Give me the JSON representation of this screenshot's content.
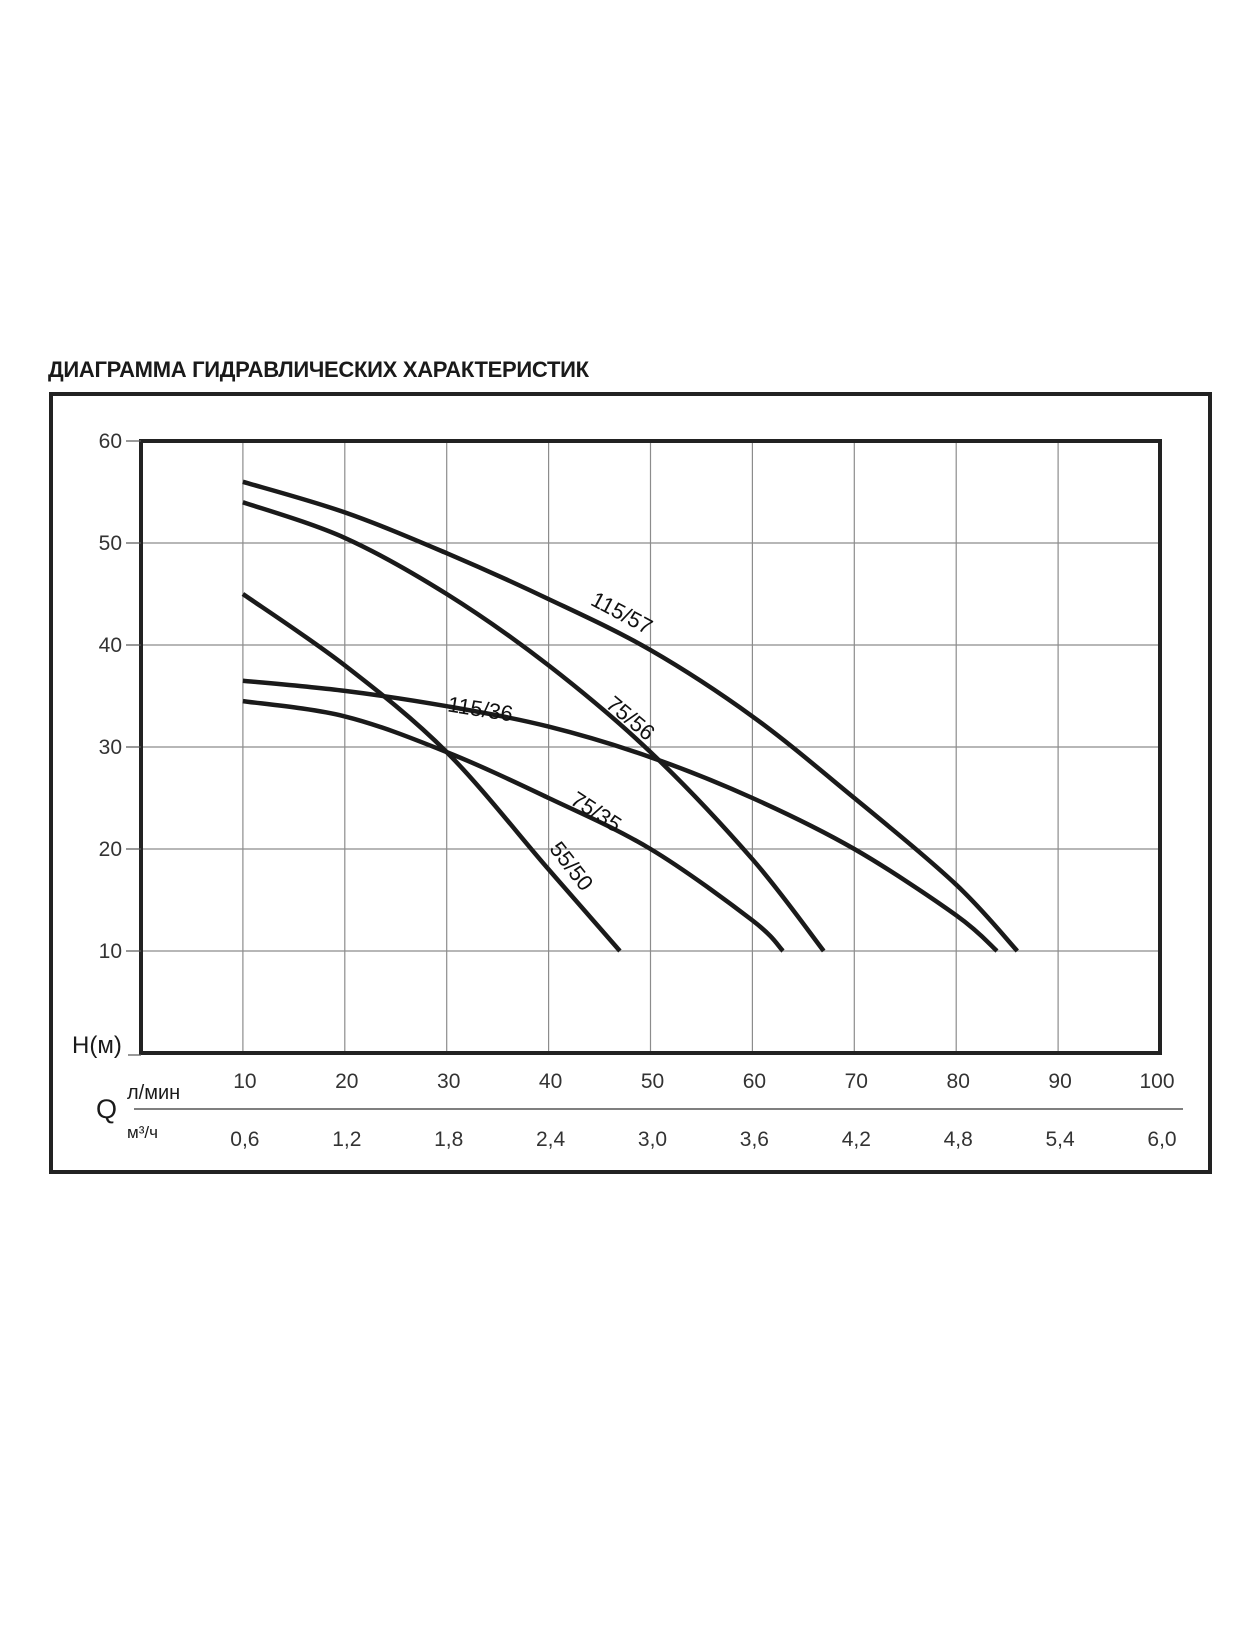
{
  "page": {
    "title": "ДИАГРАММА ГИДРАВЛИЧЕСКИХ ХАРАКТЕРИСТИК"
  },
  "chart_data": {
    "type": "line",
    "title": "ДИАГРАММА ГИДРАВЛИЧЕСКИХ ХАРАКТЕРИСТИК",
    "ylabel": "H(м)",
    "xlabel": "Q",
    "x_unit_primary": "л/мин",
    "x_unit_secondary": "м³/ч",
    "xlim": [
      0,
      100
    ],
    "ylim": [
      0,
      60
    ],
    "grid": true,
    "legend": "none",
    "x_ticks_primary": [
      "10",
      "20",
      "30",
      "40",
      "50",
      "60",
      "70",
      "80",
      "90",
      "100"
    ],
    "x_ticks_secondary": [
      "0,6",
      "1,2",
      "1,8",
      "2,4",
      "3,0",
      "3,6",
      "4,2",
      "4,8",
      "5,4",
      "6,0"
    ],
    "y_ticks": [
      "60",
      "50",
      "40",
      "30",
      "20",
      "10"
    ],
    "series": [
      {
        "name": "115/57",
        "points": [
          [
            10,
            56
          ],
          [
            20,
            53
          ],
          [
            30,
            49
          ],
          [
            40,
            44.5
          ],
          [
            50,
            39.5
          ],
          [
            60,
            33
          ],
          [
            70,
            25
          ],
          [
            80,
            16.5
          ],
          [
            86,
            10
          ]
        ]
      },
      {
        "name": "75/56",
        "points": [
          [
            10,
            54
          ],
          [
            20,
            50.5
          ],
          [
            30,
            45
          ],
          [
            40,
            38
          ],
          [
            50,
            29.5
          ],
          [
            60,
            19
          ],
          [
            67,
            10
          ]
        ]
      },
      {
        "name": "115/36",
        "points": [
          [
            10,
            36.5
          ],
          [
            20,
            35.5
          ],
          [
            30,
            34
          ],
          [
            40,
            32
          ],
          [
            50,
            29
          ],
          [
            60,
            25
          ],
          [
            70,
            20
          ],
          [
            80,
            13.5
          ],
          [
            84,
            10
          ]
        ]
      },
      {
        "name": "75/35",
        "points": [
          [
            10,
            34.5
          ],
          [
            20,
            33
          ],
          [
            30,
            29.5
          ],
          [
            40,
            25
          ],
          [
            50,
            20
          ],
          [
            60,
            13
          ],
          [
            63,
            10
          ]
        ]
      },
      {
        "name": "55/50",
        "points": [
          [
            10,
            45
          ],
          [
            20,
            38
          ],
          [
            30,
            29.5
          ],
          [
            40,
            18
          ],
          [
            47,
            10
          ]
        ]
      }
    ]
  }
}
